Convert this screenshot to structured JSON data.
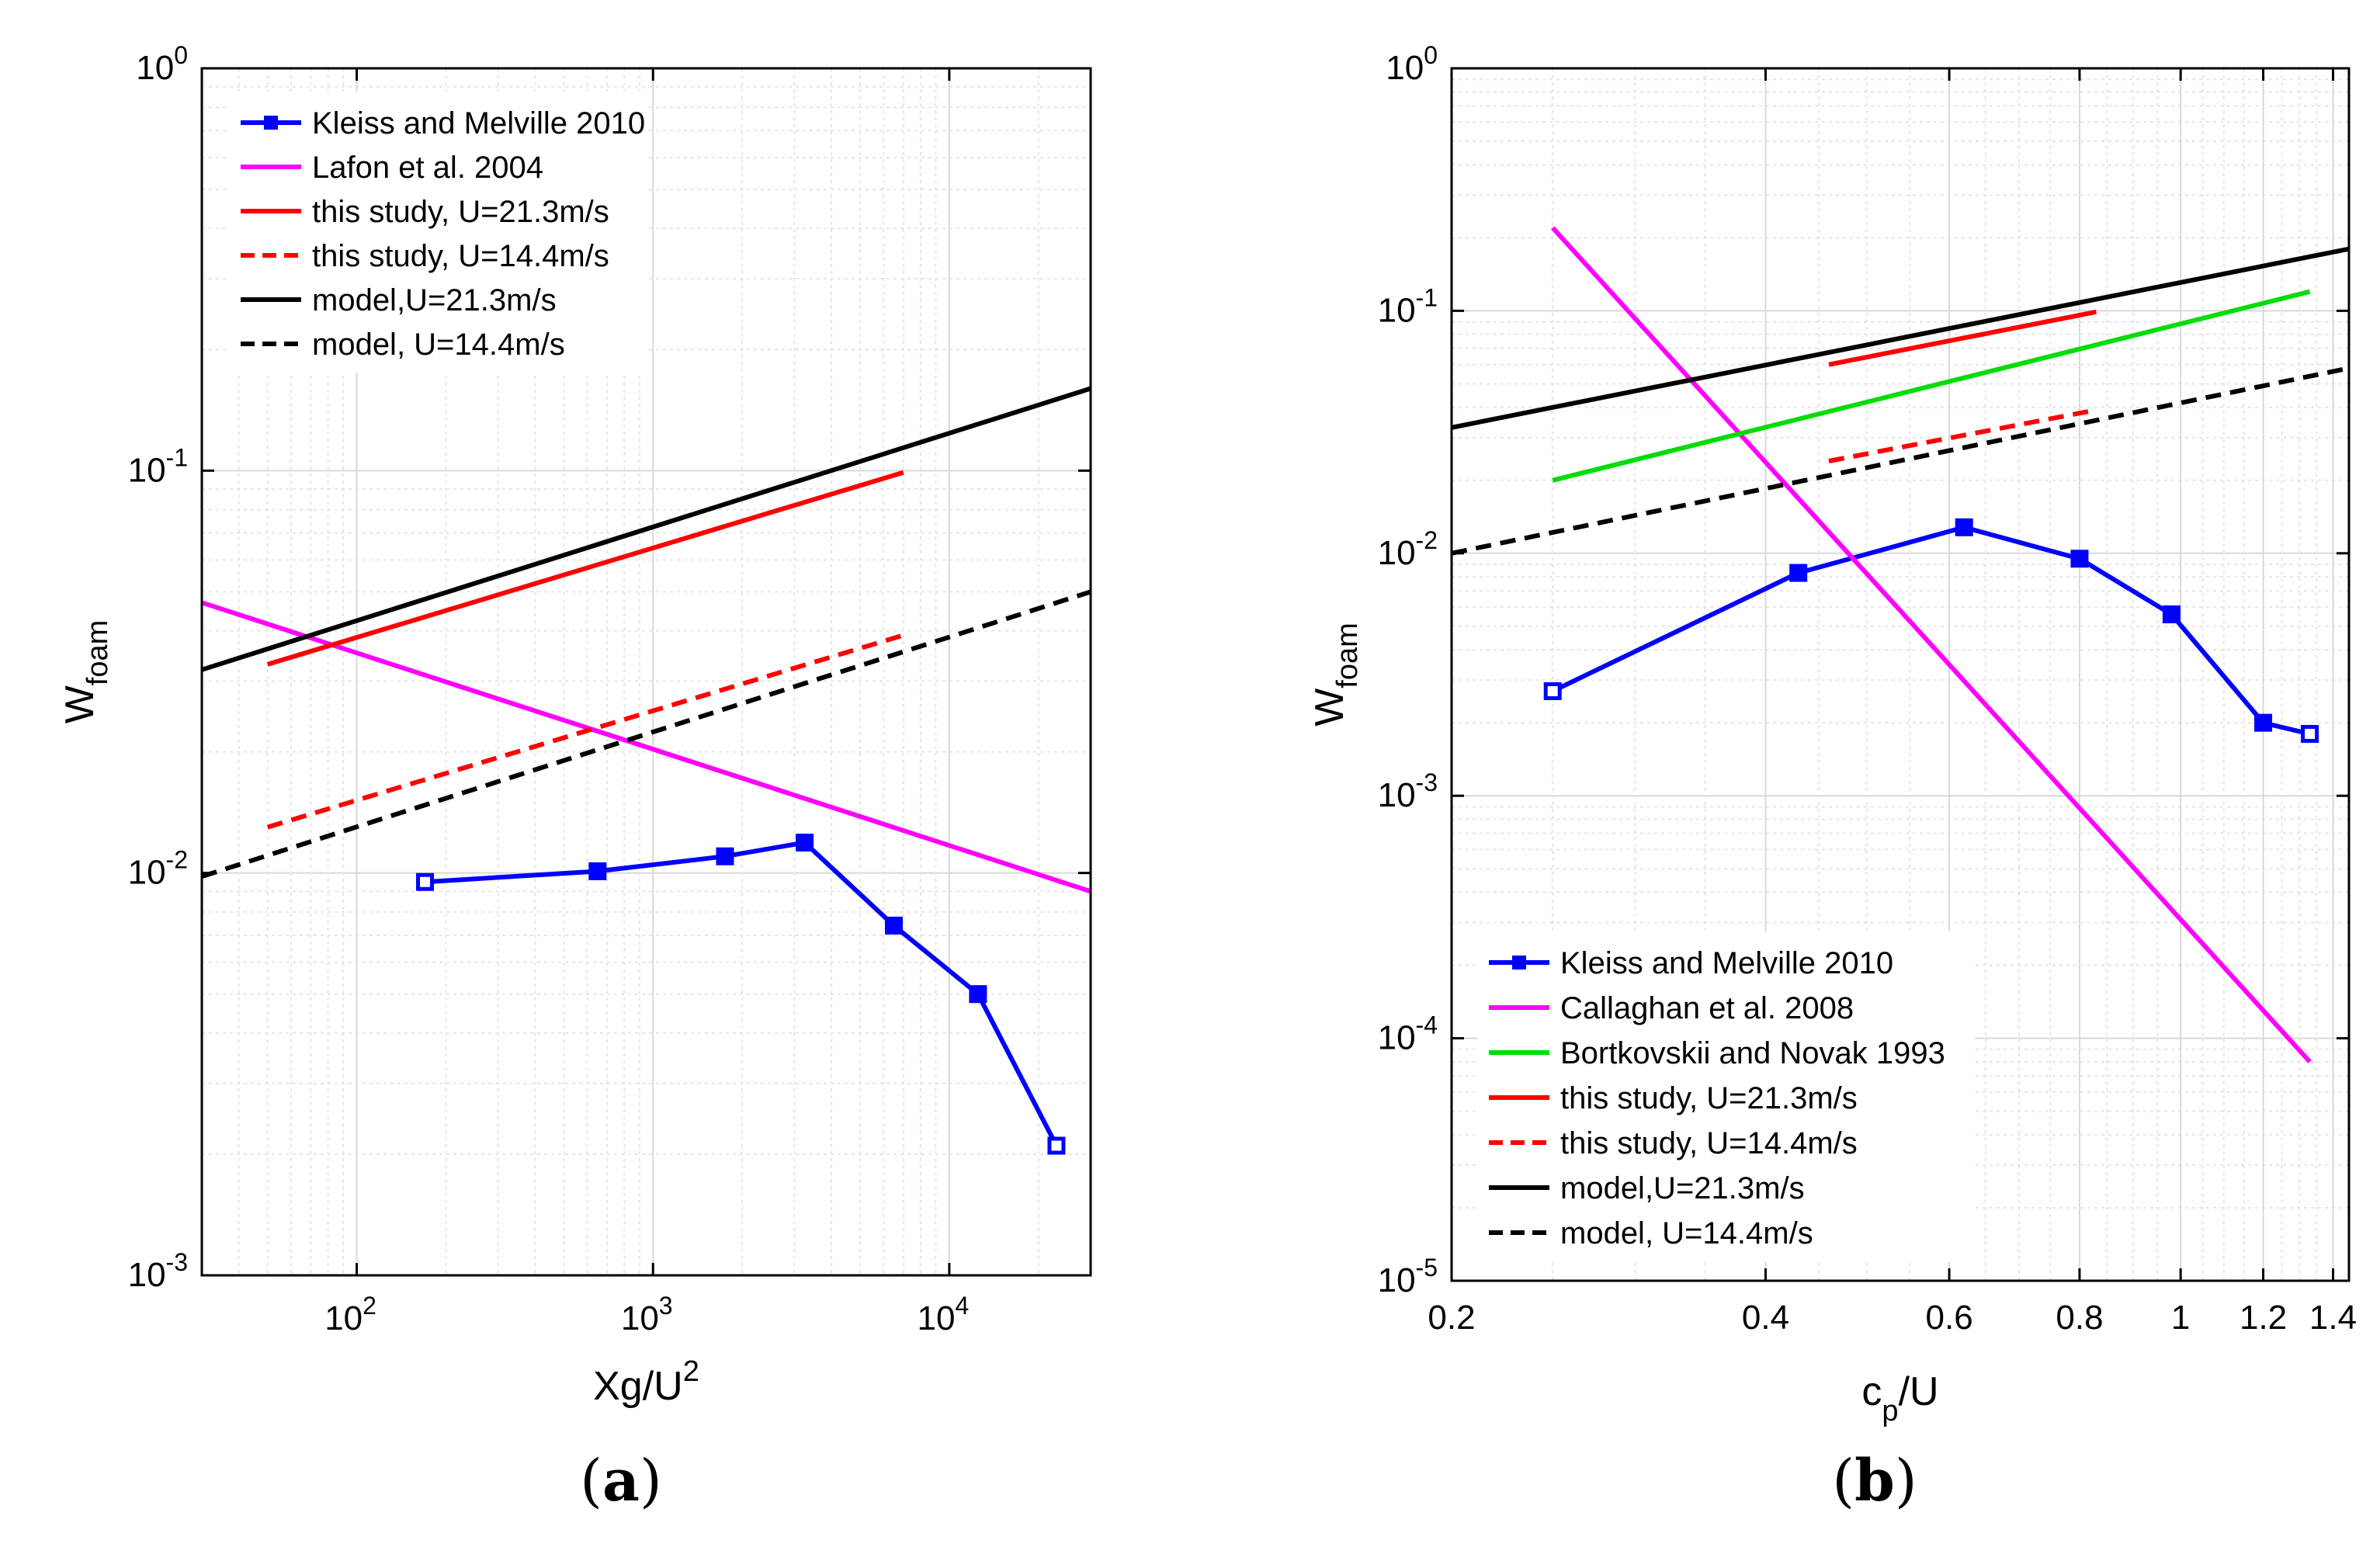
{
  "chart_data": [
    {
      "type": "line",
      "panel_label": "a",
      "xscale": "log",
      "yscale": "log",
      "xlim": [
        30,
        30000
      ],
      "ylim": [
        0.001,
        1
      ],
      "xlabel": "Xg/U",
      "xlabel_sup": "2",
      "ylabel": "W",
      "ylabel_sub": "foam",
      "grid": true,
      "legend_position": "top-left",
      "x_ticks": [
        {
          "value": 100,
          "base": "10",
          "exp": "2"
        },
        {
          "value": 1000,
          "base": "10",
          "exp": "3"
        },
        {
          "value": 10000,
          "base": "10",
          "exp": "4"
        }
      ],
      "y_ticks": [
        {
          "value": 0.001,
          "base": "10",
          "exp": "-3"
        },
        {
          "value": 0.01,
          "base": "10",
          "exp": "-2"
        },
        {
          "value": 0.1,
          "base": "10",
          "exp": "-1"
        },
        {
          "value": 1,
          "base": "10",
          "exp": "0"
        }
      ],
      "series": [
        {
          "name": "Kleiss and Melville 2010",
          "color": "#0000ff",
          "dash": "solid",
          "marker": "square",
          "x": [
            170,
            650,
            1750,
            3250,
            6500,
            12500,
            23000
          ],
          "y": [
            0.0095,
            0.0101,
            0.011,
            0.0119,
            0.0074,
            0.005,
            0.0021
          ]
        },
        {
          "name": "Lafon et al. 2004",
          "color": "#ff00ff",
          "dash": "solid",
          "marker": "none",
          "x": [
            30,
            30000
          ],
          "y": [
            0.047,
            0.009
          ]
        },
        {
          "name": "this study, U=21.3m/s",
          "color": "#ff0000",
          "dash": "solid",
          "marker": "none",
          "x": [
            50,
            7000
          ],
          "y": [
            0.033,
            0.099
          ]
        },
        {
          "name": "this study, U=14.4m/s",
          "color": "#ff0000",
          "dash": "dashed",
          "marker": "none",
          "x": [
            50,
            7000
          ],
          "y": [
            0.013,
            0.039
          ]
        },
        {
          "name": "model,U=21.3m/s",
          "color": "#000000",
          "dash": "solid",
          "marker": "none",
          "x": [
            30,
            30000
          ],
          "y": [
            0.032,
            0.16
          ]
        },
        {
          "name": "model, U=14.4m/s",
          "color": "#000000",
          "dash": "dashed",
          "marker": "none",
          "x": [
            30,
            30000
          ],
          "y": [
            0.0098,
            0.05
          ]
        }
      ]
    },
    {
      "type": "line",
      "panel_label": "b",
      "xscale": "log",
      "yscale": "log",
      "xlim": [
        0.2,
        1.45
      ],
      "ylim": [
        1e-05,
        1
      ],
      "xlabel": "c",
      "xlabel_sub": "p",
      "xlabel_rest": "/U",
      "ylabel": "W",
      "ylabel_sub": "foam",
      "grid": true,
      "legend_position": "bottom-left",
      "x_ticks": [
        {
          "value": 0.2,
          "label": "0.2"
        },
        {
          "value": 0.4,
          "label": "0.4"
        },
        {
          "value": 0.6,
          "label": "0.6"
        },
        {
          "value": 0.8,
          "label": "0.8"
        },
        {
          "value": 1.0,
          "label": "1"
        },
        {
          "value": 1.2,
          "label": "1.2"
        },
        {
          "value": 1.4,
          "label": "1.4"
        }
      ],
      "y_ticks": [
        {
          "value": 1e-05,
          "base": "10",
          "exp": "-5"
        },
        {
          "value": 0.0001,
          "base": "10",
          "exp": "-4"
        },
        {
          "value": 0.001,
          "base": "10",
          "exp": "-3"
        },
        {
          "value": 0.01,
          "base": "10",
          "exp": "-2"
        },
        {
          "value": 0.1,
          "base": "10",
          "exp": "-1"
        },
        {
          "value": 1,
          "base": "10",
          "exp": "0"
        }
      ],
      "series": [
        {
          "name": "Kleiss and Melville 2010",
          "color": "#0000ff",
          "dash": "solid",
          "marker": "square",
          "x": [
            0.25,
            0.43,
            0.62,
            0.8,
            0.98,
            1.2,
            1.33
          ],
          "y": [
            0.0027,
            0.0083,
            0.0128,
            0.0095,
            0.0056,
            0.002,
            0.0018
          ]
        },
        {
          "name": "Callaghan et al. 2008",
          "color": "#ff00ff",
          "dash": "solid",
          "marker": "none",
          "x": [
            0.25,
            1.33
          ],
          "y": [
            0.22,
            8e-05
          ]
        },
        {
          "name": "Bortkovskii and Novak 1993",
          "color": "#00dd00",
          "dash": "solid",
          "marker": "none",
          "x": [
            0.25,
            1.33
          ],
          "y": [
            0.02,
            0.12
          ]
        },
        {
          "name": "this study, U=21.3m/s",
          "color": "#ff0000",
          "dash": "solid",
          "marker": "none",
          "x": [
            0.46,
            0.83
          ],
          "y": [
            0.06,
            0.099
          ]
        },
        {
          "name": "this study, U=14.4m/s",
          "color": "#ff0000",
          "dash": "dashed",
          "marker": "none",
          "x": [
            0.46,
            0.83
          ],
          "y": [
            0.024,
            0.039
          ]
        },
        {
          "name": "model,U=21.3m/s",
          "color": "#000000",
          "dash": "solid",
          "marker": "none",
          "x": [
            0.2,
            1.45
          ],
          "y": [
            0.033,
            0.18
          ]
        },
        {
          "name": "model, U=14.4m/s",
          "color": "#000000",
          "dash": "dashed",
          "marker": "none",
          "x": [
            0.2,
            1.45
          ],
          "y": [
            0.01,
            0.058
          ]
        }
      ]
    }
  ]
}
